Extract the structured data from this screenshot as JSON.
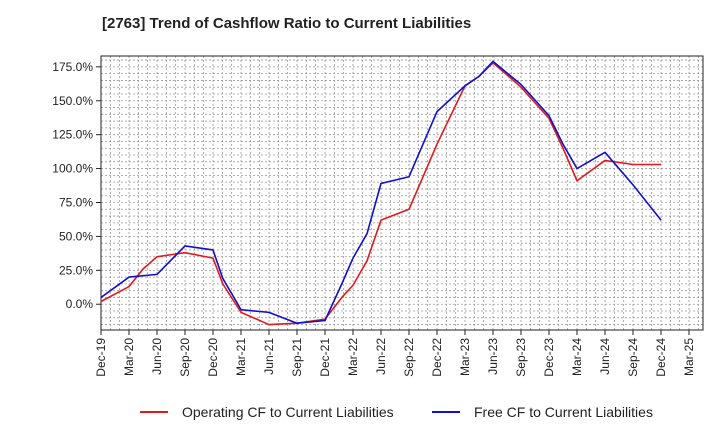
{
  "chart_data": {
    "type": "line",
    "title": "[2763]  Trend of Cashflow Ratio to Current Liabilities",
    "xlabel": "",
    "ylabel": "",
    "y_ticks": [
      "0.0%",
      "25.0%",
      "50.0%",
      "75.0%",
      "100.0%",
      "125.0%",
      "150.0%",
      "175.0%"
    ],
    "y_tick_values": [
      0,
      25,
      50,
      75,
      100,
      125,
      150,
      175
    ],
    "ylim": [
      -19,
      183
    ],
    "x_ticks": [
      "Dec-19",
      "Mar-20",
      "Jun-20",
      "Sep-20",
      "Dec-20",
      "Mar-21",
      "Jun-21",
      "Sep-21",
      "Dec-21",
      "Mar-22",
      "Jun-22",
      "Sep-22",
      "Dec-22",
      "Mar-23",
      "Jun-23",
      "Sep-23",
      "Dec-23",
      "Mar-24",
      "Jun-24",
      "Sep-24",
      "Dec-24",
      "Mar-25",
      "Dec-25"
    ],
    "x_tick_index": [
      0,
      1,
      2,
      3,
      4,
      5,
      6,
      7,
      8,
      9,
      10,
      11,
      12,
      13,
      14,
      15,
      16,
      17,
      18,
      19,
      20,
      21,
      22
    ],
    "xlim": [
      0,
      21.5
    ],
    "grid": true,
    "legend_position": "bottom",
    "series": [
      {
        "name": "Operating CF to Current Liabilities",
        "color": "#e31a1c",
        "points": [
          [
            0,
            2
          ],
          [
            1,
            13
          ],
          [
            1.5,
            26
          ],
          [
            2,
            35
          ],
          [
            3,
            38
          ],
          [
            4,
            34
          ],
          [
            4.35,
            15
          ],
          [
            5,
            -6
          ],
          [
            6,
            -15
          ],
          [
            7,
            -14
          ],
          [
            8,
            -11
          ],
          [
            8.6,
            5
          ],
          [
            9,
            14
          ],
          [
            9.5,
            32
          ],
          [
            10,
            62
          ],
          [
            11,
            70
          ],
          [
            12,
            118
          ],
          [
            13,
            161
          ],
          [
            13.5,
            168
          ],
          [
            14,
            178
          ],
          [
            15,
            160
          ],
          [
            16,
            137
          ],
          [
            16.5,
            115
          ],
          [
            17,
            91
          ],
          [
            18,
            106
          ],
          [
            19,
            103
          ],
          [
            20,
            103
          ]
        ]
      },
      {
        "name": "Free CF to Current Liabilities",
        "color": "#1010d0",
        "points": [
          [
            0,
            5
          ],
          [
            1,
            20
          ],
          [
            2,
            22
          ],
          [
            3,
            43
          ],
          [
            4,
            40
          ],
          [
            4.35,
            19
          ],
          [
            5,
            -4
          ],
          [
            6,
            -6
          ],
          [
            7,
            -14
          ],
          [
            8,
            -12
          ],
          [
            8.6,
            15
          ],
          [
            9,
            34
          ],
          [
            9.5,
            52
          ],
          [
            10,
            89
          ],
          [
            11,
            94
          ],
          [
            12,
            142
          ],
          [
            13,
            161
          ],
          [
            13.5,
            168
          ],
          [
            14,
            179
          ],
          [
            15,
            162
          ],
          [
            16,
            139
          ],
          [
            16.5,
            118
          ],
          [
            17,
            100
          ],
          [
            18,
            112
          ],
          [
            19,
            88
          ],
          [
            20,
            62
          ]
        ]
      }
    ]
  }
}
